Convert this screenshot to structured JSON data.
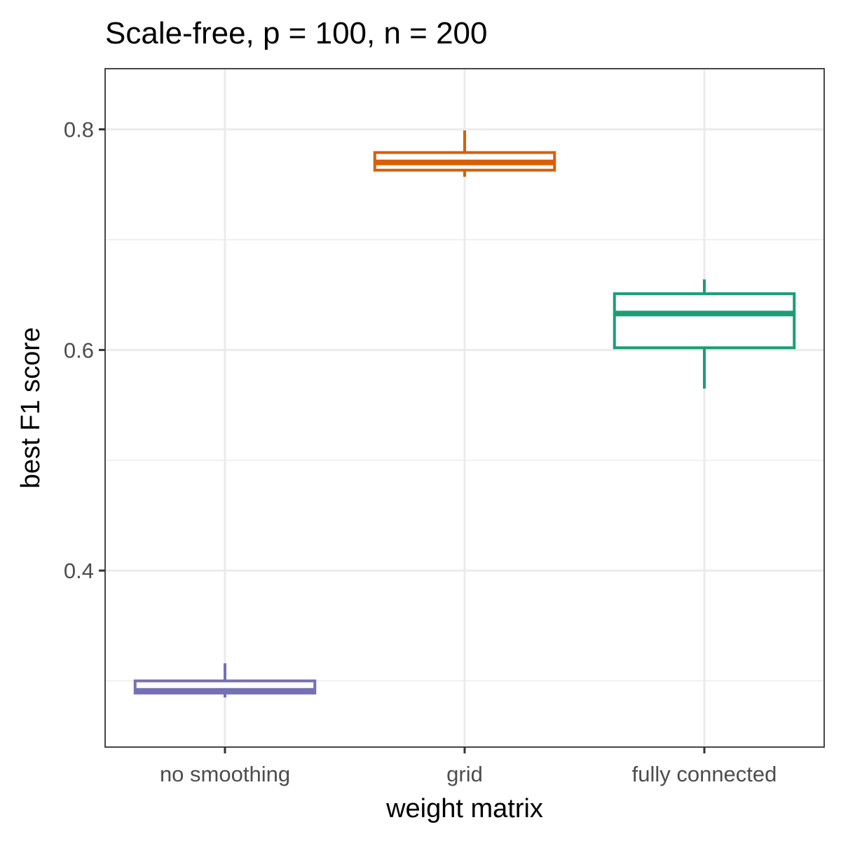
{
  "chart_data": {
    "type": "box",
    "title": "Scale-free, p = 100, n = 200",
    "xlabel": "weight matrix",
    "ylabel": "best F1 score",
    "categories": [
      "no smoothing",
      "grid",
      "fully connected"
    ],
    "ylim": [
      0.24,
      0.855
    ],
    "yticks": [
      0.4,
      0.6,
      0.8
    ],
    "ytick_labels": [
      "0.4",
      "0.6",
      "0.8"
    ],
    "grid": true,
    "boxes": [
      {
        "category": "no smoothing",
        "color": "#7570b3",
        "whisker_low": 0.285,
        "q1": 0.289,
        "median": 0.291,
        "q3": 0.3,
        "whisker_high": 0.316
      },
      {
        "category": "grid",
        "color": "#d95f02",
        "whisker_low": 0.757,
        "q1": 0.763,
        "median": 0.77,
        "q3": 0.779,
        "whisker_high": 0.799
      },
      {
        "category": "fully connected",
        "color": "#1b9e77",
        "whisker_low": 0.565,
        "q1": 0.602,
        "median": 0.633,
        "q3": 0.651,
        "whisker_high": 0.664
      }
    ]
  }
}
